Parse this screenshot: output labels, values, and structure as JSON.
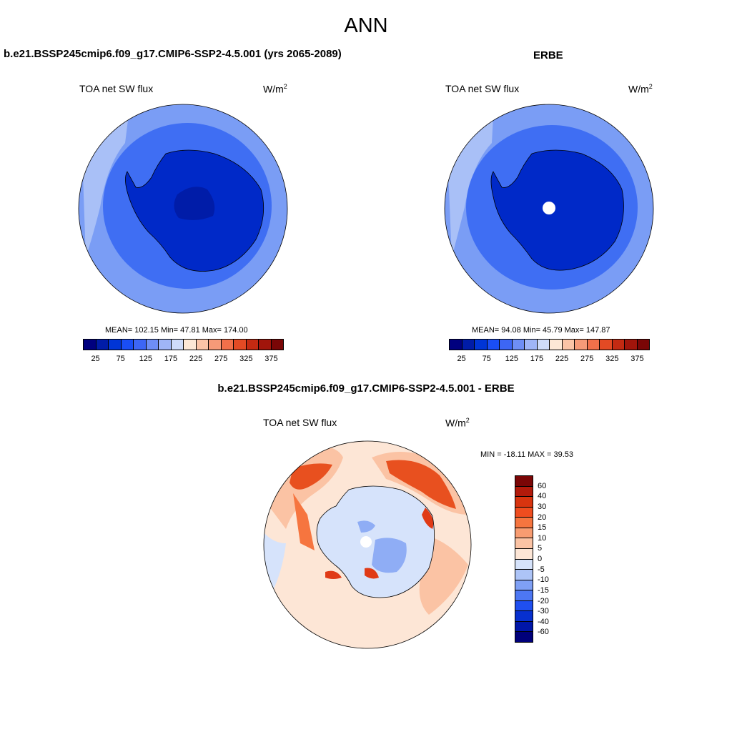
{
  "figure": {
    "title": "ANN",
    "diff_title": "b.e21.BSSP245cmip6.f09_g17.CMIP6-SSP2-4.5.001 - ERBE"
  },
  "panels": [
    {
      "title": "b.e21.BSSP245cmip6.f09_g17.CMIP6-SSP2-4.5.001 (yrs 2065-2089)",
      "variable": "TOA net SW flux",
      "unit_base": "W/m",
      "unit_exp": "2",
      "stats_text": "MEAN= 102.15  Min=  47.81  Max= 174.00"
    },
    {
      "title": "ERBE",
      "variable": "TOA net SW flux",
      "unit_base": "W/m",
      "unit_exp": "2",
      "stats_text": "MEAN=  94.08  Min=  45.79  Max= 147.87"
    },
    {
      "variable": "TOA net SW flux",
      "unit_base": "W/m",
      "unit_exp": "2",
      "stats_text": "MIN = -18.11 MAX =  39.53"
    }
  ],
  "chart_data": [
    {
      "type": "heatmap",
      "projection": "south polar stereographic",
      "title": "b.e21.BSSP245cmip6.f09_g17.CMIP6-SSP2-4.5.001 (yrs 2065-2089)",
      "variable": "TOA net SW flux",
      "units": "W/m2",
      "mean": 102.15,
      "min": 47.81,
      "max": 174.0,
      "colorbar": {
        "levels": [
          25,
          50,
          75,
          100,
          125,
          150,
          175,
          200,
          225,
          250,
          275,
          300,
          325,
          350,
          375
        ],
        "tick_labels": [
          "25",
          "75",
          "125",
          "175",
          "225",
          "275",
          "325",
          "375"
        ],
        "colors": [
          "#00007f",
          "#001ca8",
          "#0035d6",
          "#1a4ef5",
          "#3d66f5",
          "#6e8ef5",
          "#9fb5f7",
          "#cfdcfa",
          "#fde8d6",
          "#fbc4a7",
          "#f69a78",
          "#f2704a",
          "#e34a24",
          "#c32a12",
          "#a1150b",
          "#7a0606"
        ]
      }
    },
    {
      "type": "heatmap",
      "projection": "south polar stereographic",
      "title": "ERBE",
      "variable": "TOA net SW flux",
      "units": "W/m2",
      "mean": 94.08,
      "min": 45.79,
      "max": 147.87,
      "colorbar": {
        "levels": [
          25,
          50,
          75,
          100,
          125,
          150,
          175,
          200,
          225,
          250,
          275,
          300,
          325,
          350,
          375
        ],
        "tick_labels": [
          "25",
          "75",
          "125",
          "175",
          "225",
          "275",
          "325",
          "375"
        ],
        "colors": [
          "#00007f",
          "#001ca8",
          "#0035d6",
          "#1a4ef5",
          "#3d66f5",
          "#6e8ef5",
          "#9fb5f7",
          "#cfdcfa",
          "#fde8d6",
          "#fbc4a7",
          "#f69a78",
          "#f2704a",
          "#e34a24",
          "#c32a12",
          "#a1150b",
          "#7a0606"
        ]
      }
    },
    {
      "type": "heatmap",
      "projection": "south polar stereographic",
      "title": "b.e21.BSSP245cmip6.f09_g17.CMIP6-SSP2-4.5.001 - ERBE",
      "variable": "TOA net SW flux",
      "units": "W/m2",
      "min": -18.11,
      "max": 39.53,
      "colorbar": {
        "levels": [
          60,
          40,
          30,
          20,
          15,
          10,
          5,
          0,
          -5,
          -10,
          -15,
          -20,
          -30,
          -40,
          -60
        ],
        "tick_labels": [
          "60",
          "40",
          "30",
          "20",
          "15",
          "10",
          "5",
          "0",
          "-5",
          "-10",
          "-15",
          "-20",
          "-30",
          "-40",
          "-60"
        ],
        "colors": [
          "#7a0606",
          "#b21a0b",
          "#d8340f",
          "#ef4d1f",
          "#f6753f",
          "#f89c71",
          "#fbc3a4",
          "#fde6d6",
          "#d6e3fb",
          "#adc4f7",
          "#7fa0f5",
          "#4d77f3",
          "#1f4ff0",
          "#0730cf",
          "#0016a8",
          "#00007a"
        ]
      }
    }
  ],
  "colors": {
    "land_deep": "#0029c8",
    "ocean_mid": "#3f6ef3",
    "ocean_light": "#7a9df5",
    "ocean_pale": "#a9c0f7",
    "diff_base": "#fde6d6",
    "diff_pink": "#fbc3a4",
    "diff_orange": "#f6753f",
    "diff_red": "#e03a16",
    "diff_blue_pale": "#d6e3fb",
    "diff_blue": "#8fadf5"
  }
}
